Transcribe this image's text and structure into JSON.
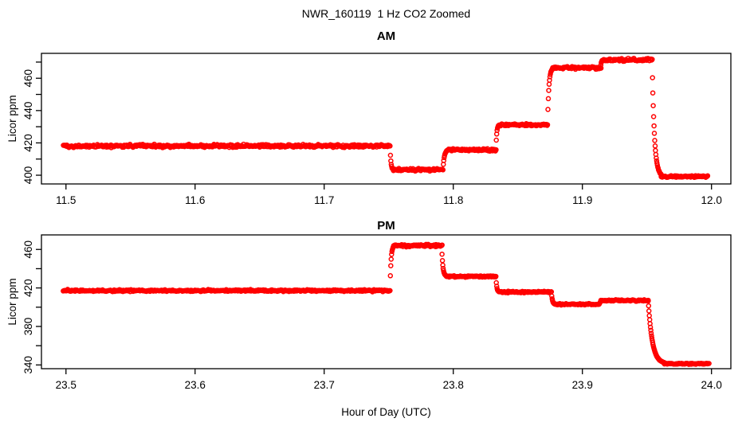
{
  "figure": {
    "title": "NWR_160119  1 Hz CO2 Zoomed",
    "xlabel": "Hour of Day (UTC)",
    "background_color": "#FFFFFF",
    "axis_color": "#000000",
    "point_color": "#FF0000"
  },
  "chart_data": [
    {
      "type": "scatter",
      "panel": "AM",
      "title": "AM",
      "ylabel": "Licor ppm",
      "marker": "open-circle",
      "marker_color": "#FF0000",
      "grid": false,
      "legend": null,
      "sample_rate_hz": 1,
      "xlim": [
        11.481,
        12.015
      ],
      "ylim": [
        394.6,
        475.4
      ],
      "xticks": {
        "values": [
          11.5,
          11.6,
          11.7,
          11.8,
          11.9,
          12.0
        ],
        "labels": [
          "11.5",
          "11.6",
          "11.7",
          "11.8",
          "11.9",
          "12.0"
        ]
      },
      "yticks": {
        "minor": [
          400,
          410,
          420,
          430,
          440,
          450,
          460,
          470
        ],
        "labeled_values": [
          400,
          420,
          440,
          460
        ],
        "labels": [
          "400",
          "420",
          "440",
          "460"
        ]
      },
      "segments": [
        {
          "x0": 11.498,
          "x1": 11.751,
          "y": 418.1,
          "noise": 1.3
        },
        {
          "x0": 11.7535,
          "x1": 11.792,
          "y": 403.4,
          "noise": 1.1
        },
        {
          "x0": 11.796,
          "x1": 11.833,
          "y": 415.7,
          "noise": 1.0
        },
        {
          "x0": 11.8355,
          "x1": 11.873,
          "y": 431.2,
          "noise": 1.0
        },
        {
          "x0": 11.877,
          "x1": 11.914,
          "y": 466.5,
          "noise": 1.2
        },
        {
          "x0": 11.9165,
          "x1": 11.954,
          "y": 471.4,
          "noise": 1.2
        },
        {
          "x0": 11.961,
          "x1": 11.997,
          "y": 399.2,
          "noise": 1.0
        }
      ],
      "transitions": [
        {
          "x0": 11.751,
          "x1": 11.7535,
          "y0": 418.1,
          "y1": 403.4,
          "shape": "exp"
        },
        {
          "x0": 11.792,
          "x1": 11.796,
          "y0": 403.4,
          "y1": 415.7,
          "shape": "exp"
        },
        {
          "x0": 11.833,
          "x1": 11.8355,
          "y0": 415.7,
          "y1": 431.2,
          "shape": "exp"
        },
        {
          "x0": 11.873,
          "x1": 11.877,
          "y0": 431.2,
          "y1": 466.5,
          "shape": "exp"
        },
        {
          "x0": 11.914,
          "x1": 11.9165,
          "y0": 466.5,
          "y1": 471.4,
          "shape": "exp"
        },
        {
          "x0": 11.954,
          "x1": 11.961,
          "y0": 471.4,
          "y1": 399.2,
          "shape": "exp"
        }
      ]
    },
    {
      "type": "scatter",
      "panel": "PM",
      "title": "PM",
      "ylabel": "Licor ppm",
      "marker": "open-circle",
      "marker_color": "#FF0000",
      "grid": false,
      "legend": null,
      "sample_rate_hz": 1,
      "xlim": [
        23.481,
        24.015
      ],
      "ylim": [
        336.1,
        475.1
      ],
      "xticks": {
        "values": [
          23.5,
          23.6,
          23.7,
          23.8,
          23.9,
          24.0
        ],
        "labels": [
          "23.5",
          "23.6",
          "23.7",
          "23.8",
          "23.9",
          "24.0"
        ]
      },
      "yticks": {
        "minor": [
          340,
          360,
          380,
          400,
          420,
          440,
          460
        ],
        "labeled_values": [
          340,
          380,
          420,
          460
        ],
        "labels": [
          "340",
          "380",
          "420",
          "460"
        ]
      },
      "segments": [
        {
          "x0": 23.498,
          "x1": 23.751,
          "y": 417.2,
          "noise": 1.4
        },
        {
          "x0": 23.754,
          "x1": 23.791,
          "y": 464.1,
          "noise": 1.6
        },
        {
          "x0": 23.7945,
          "x1": 23.833,
          "y": 432.0,
          "noise": 1.2
        },
        {
          "x0": 23.8355,
          "x1": 23.876,
          "y": 415.8,
          "noise": 1.1
        },
        {
          "x0": 23.879,
          "x1": 23.913,
          "y": 403.0,
          "noise": 1.0
        },
        {
          "x0": 23.9145,
          "x1": 23.951,
          "y": 407.0,
          "noise": 1.2
        },
        {
          "x0": 23.9635,
          "x1": 23.998,
          "y": 341.2,
          "noise": 0.9
        }
      ],
      "transitions": [
        {
          "x0": 23.751,
          "x1": 23.754,
          "y0": 417.2,
          "y1": 464.1,
          "shape": "exp"
        },
        {
          "x0": 23.791,
          "x1": 23.7945,
          "y0": 464.1,
          "y1": 432.0,
          "shape": "exp"
        },
        {
          "x0": 23.833,
          "x1": 23.8355,
          "y0": 432.0,
          "y1": 415.8,
          "shape": "exp"
        },
        {
          "x0": 23.876,
          "x1": 23.879,
          "y0": 415.8,
          "y1": 403.0,
          "shape": "exp"
        },
        {
          "x0": 23.913,
          "x1": 23.9145,
          "y0": 403.0,
          "y1": 407.0,
          "shape": "lin"
        },
        {
          "x0": 23.951,
          "x1": 23.9635,
          "y0": 407.0,
          "y1": 341.2,
          "shape": "decay"
        }
      ]
    }
  ]
}
